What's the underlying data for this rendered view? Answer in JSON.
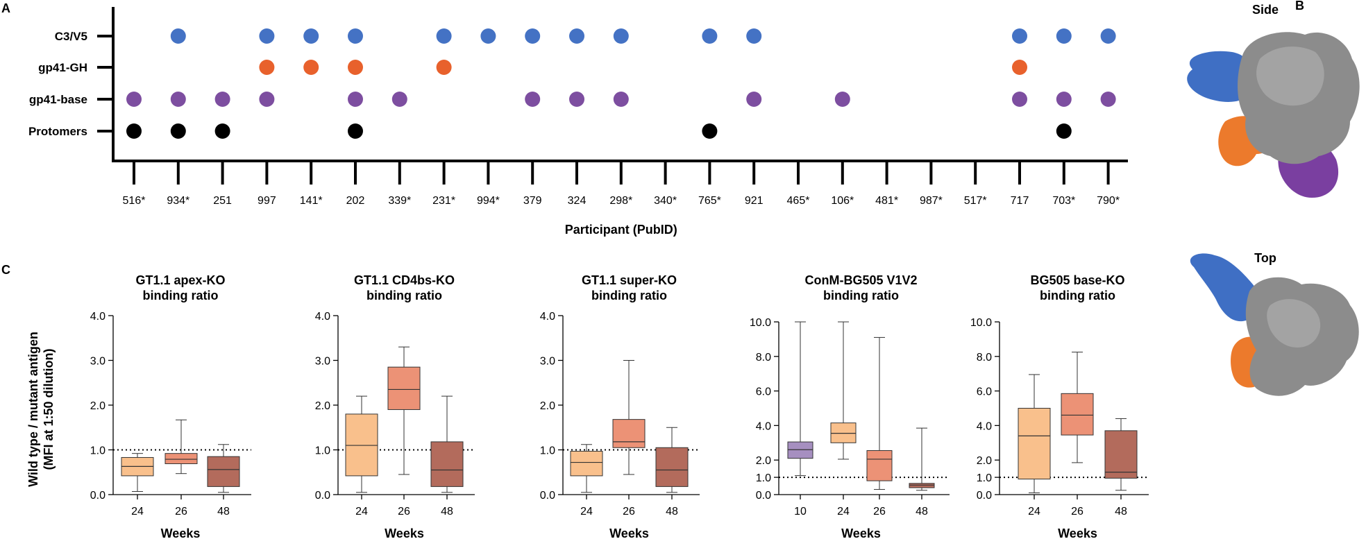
{
  "figure": {
    "panel_a": "A",
    "panel_b": "B",
    "panel_c": "C",
    "structure_views": [
      "Side",
      "Top"
    ],
    "structure_colors": {
      "body": "#8c8c8c",
      "c3v5": "#3f6fc4",
      "gh": "#ec7a2c",
      "base": "#7a3fa0"
    }
  },
  "chart_data": [
    {
      "type": "scatter",
      "title": "",
      "xlabel": "Participant (PubID)",
      "participants": [
        "516*",
        "934*",
        "251",
        "997",
        "141*",
        "202",
        "339*",
        "231*",
        "994*",
        "379",
        "324",
        "298*",
        "340*",
        "765*",
        "921",
        "465*",
        "106*",
        "481*",
        "987*",
        "517*",
        "717",
        "703*",
        "790*"
      ],
      "series": [
        {
          "name": "C3/V5",
          "color": "#4472c4",
          "present": [
            "934*",
            "997",
            "141*",
            "202",
            "231*",
            "994*",
            "379",
            "324",
            "298*",
            "765*",
            "921",
            "717",
            "703*",
            "790*"
          ]
        },
        {
          "name": "gp41-GH",
          "color": "#e8612c",
          "present": [
            "997",
            "141*",
            "202",
            "231*",
            "717"
          ]
        },
        {
          "name": "gp41-base",
          "color": "#7d4ea0",
          "present": [
            "516*",
            "934*",
            "251",
            "997",
            "202",
            "339*",
            "379",
            "324",
            "298*",
            "921",
            "106*",
            "717",
            "703*",
            "790*"
          ]
        },
        {
          "name": "Protomers",
          "color": "#000000",
          "present": [
            "516*",
            "934*",
            "251",
            "202",
            "765*",
            "703*"
          ]
        }
      ]
    },
    {
      "type": "box",
      "title": [
        "GT1.1 apex-KO",
        "binding ratio"
      ],
      "xlabel": "Weeks",
      "ylabel": [
        "Wild type / mutant antigen",
        "(MFI at 1:50 dilution)"
      ],
      "ylim": [
        0,
        4.0
      ],
      "yticks": [
        "0.0",
        "1.0",
        "2.0",
        "3.0",
        "4.0"
      ],
      "reference_line": 1.0,
      "categories": [
        "24",
        "26",
        "48"
      ],
      "colors": [
        "#f9c08c",
        "#ec9276",
        "#b36b5c"
      ],
      "boxes": [
        {
          "min": 0.07,
          "q1": 0.42,
          "median": 0.63,
          "q3": 0.83,
          "max": 0.92
        },
        {
          "min": 0.47,
          "q1": 0.69,
          "median": 0.79,
          "q3": 0.92,
          "max": 1.67
        },
        {
          "min": 0.05,
          "q1": 0.18,
          "median": 0.56,
          "q3": 0.85,
          "max": 1.12
        }
      ]
    },
    {
      "type": "box",
      "title": [
        "GT1.1 CD4bs-KO",
        "binding ratio"
      ],
      "xlabel": "Weeks",
      "ylim": [
        0,
        4.0
      ],
      "yticks": [
        "0.0",
        "1.0",
        "2.0",
        "3.0",
        "4.0"
      ],
      "reference_line": 1.0,
      "categories": [
        "24",
        "26",
        "48"
      ],
      "colors": [
        "#f9c08c",
        "#ec9276",
        "#b36b5c"
      ],
      "boxes": [
        {
          "min": 0.05,
          "q1": 0.42,
          "median": 1.1,
          "q3": 1.8,
          "max": 2.2
        },
        {
          "min": 0.45,
          "q1": 1.9,
          "median": 2.35,
          "q3": 2.85,
          "max": 3.3
        },
        {
          "min": 0.05,
          "q1": 0.18,
          "median": 0.55,
          "q3": 1.18,
          "max": 2.2
        }
      ]
    },
    {
      "type": "box",
      "title": [
        "GT1.1 super-KO",
        "binding ratio"
      ],
      "xlabel": "Weeks",
      "ylim": [
        0,
        4.0
      ],
      "yticks": [
        "0.0",
        "1.0",
        "2.0",
        "3.0",
        "4.0"
      ],
      "reference_line": 1.0,
      "categories": [
        "24",
        "26",
        "48"
      ],
      "colors": [
        "#f9c08c",
        "#ec9276",
        "#b36b5c"
      ],
      "boxes": [
        {
          "min": 0.05,
          "q1": 0.42,
          "median": 0.72,
          "q3": 0.97,
          "max": 1.12
        },
        {
          "min": 0.45,
          "q1": 1.05,
          "median": 1.18,
          "q3": 1.68,
          "max": 3.0
        },
        {
          "min": 0.05,
          "q1": 0.18,
          "median": 0.55,
          "q3": 1.05,
          "max": 1.5
        }
      ]
    },
    {
      "type": "box",
      "title": [
        "ConM-BG505 V1V2",
        "binding ratio"
      ],
      "xlabel": "Weeks",
      "ylim": [
        0,
        10.0
      ],
      "yticks": [
        "0.0",
        "1.0",
        "2.0",
        "4.0",
        "6.0",
        "8.0",
        "10.0"
      ],
      "reference_line": 1.0,
      "categories": [
        "10",
        "24",
        "26",
        "48"
      ],
      "colors": [
        "#a68fc0",
        "#f9c08c",
        "#ec9276",
        "#b36b5c"
      ],
      "boxes": [
        {
          "min": 1.1,
          "q1": 2.1,
          "median": 2.6,
          "q3": 3.05,
          "max": 10.0
        },
        {
          "min": 2.05,
          "q1": 3.0,
          "median": 3.55,
          "q3": 4.15,
          "max": 10.0
        },
        {
          "min": 0.3,
          "q1": 0.8,
          "median": 2.05,
          "q3": 2.55,
          "max": 9.1
        },
        {
          "min": 0.25,
          "q1": 0.4,
          "median": 0.55,
          "q3": 0.65,
          "max": 3.85
        }
      ]
    },
    {
      "type": "box",
      "title": [
        "BG505 base-KO",
        "binding ratio"
      ],
      "xlabel": "Weeks",
      "ylim": [
        0,
        10.0
      ],
      "yticks": [
        "0.0",
        "1.0",
        "2.0",
        "4.0",
        "6.0",
        "8.0",
        "10.0"
      ],
      "reference_line": 1.0,
      "categories": [
        "24",
        "26",
        "48"
      ],
      "colors": [
        "#f9c08c",
        "#ec9276",
        "#b36b5c"
      ],
      "boxes": [
        {
          "min": 0.1,
          "q1": 0.9,
          "median": 3.4,
          "q3": 5.0,
          "max": 6.95
        },
        {
          "min": 1.85,
          "q1": 3.45,
          "median": 4.6,
          "q3": 5.85,
          "max": 8.25
        },
        {
          "min": 0.25,
          "q1": 0.95,
          "median": 1.3,
          "q3": 3.7,
          "max": 4.4
        }
      ]
    }
  ]
}
